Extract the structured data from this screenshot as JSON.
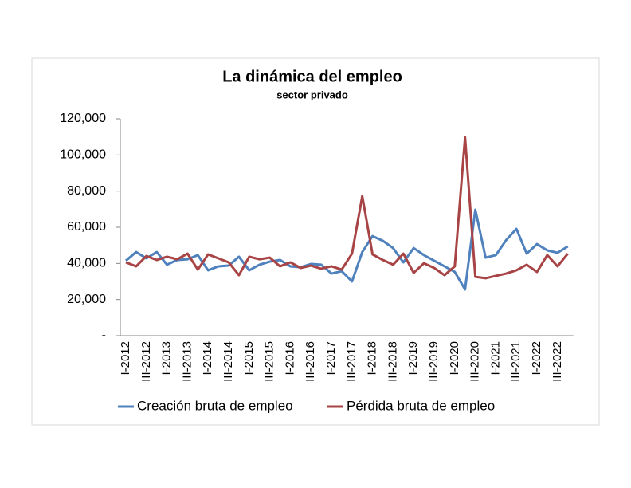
{
  "chart_data": {
    "type": "line",
    "title": "La dinámica del empleo",
    "subtitle": "sector privado",
    "categories": [
      "I-2012",
      null,
      "III-2012",
      null,
      "I-2013",
      null,
      "III-2013",
      null,
      "I-2014",
      null,
      "III-2014",
      null,
      "I-2015",
      null,
      "III-2015",
      null,
      "I-2016",
      null,
      "III-2016",
      null,
      "I-2017",
      null,
      "III-2017",
      null,
      "I-2018",
      null,
      "III-2018",
      null,
      "I-2019",
      null,
      "III-2019",
      null,
      "I-2020",
      null,
      "III-2020",
      null,
      "I-2021",
      null,
      "III-2021",
      null,
      "I-2022",
      null,
      "III-2022",
      null
    ],
    "series": [
      {
        "name": "Creación bruta de empleo",
        "color": "#4f81bd",
        "values": [
          41500,
          46300,
          42800,
          46300,
          39300,
          41900,
          42300,
          44600,
          36200,
          38400,
          38800,
          43700,
          36200,
          39300,
          41000,
          41900,
          38400,
          37900,
          39700,
          39300,
          34400,
          35700,
          30000,
          46300,
          55100,
          52500,
          48500,
          40600,
          48500,
          44600,
          41500,
          38400,
          35300,
          25600,
          69700,
          43200,
          44600,
          52900,
          59100,
          45400,
          50700,
          47200,
          45900,
          49400
        ]
      },
      {
        "name": "Pérdida bruta de empleo",
        "color": "#a84445",
        "values": [
          40600,
          38400,
          44100,
          41900,
          43700,
          42300,
          45400,
          36600,
          45000,
          42800,
          40600,
          33500,
          43700,
          42300,
          43200,
          38400,
          40600,
          37500,
          38800,
          37100,
          38400,
          36600,
          45400,
          77200,
          45000,
          41900,
          39300,
          45400,
          34800,
          40100,
          37500,
          33500,
          38400,
          109800,
          32600,
          31800,
          33100,
          34400,
          36200,
          39300,
          35300,
          44600,
          38400,
          45400
        ]
      }
    ],
    "ylim": [
      0,
      120000
    ],
    "yticks": [
      {
        "value": 0,
        "label": "-"
      },
      {
        "value": 20000,
        "label": "20,000"
      },
      {
        "value": 40000,
        "label": "40,000"
      },
      {
        "value": 60000,
        "label": "60,000"
      },
      {
        "value": 80000,
        "label": "80,000"
      },
      {
        "value": 100000,
        "label": "100,000"
      },
      {
        "value": 120000,
        "label": "120,000"
      }
    ],
    "legend": "bottom"
  }
}
